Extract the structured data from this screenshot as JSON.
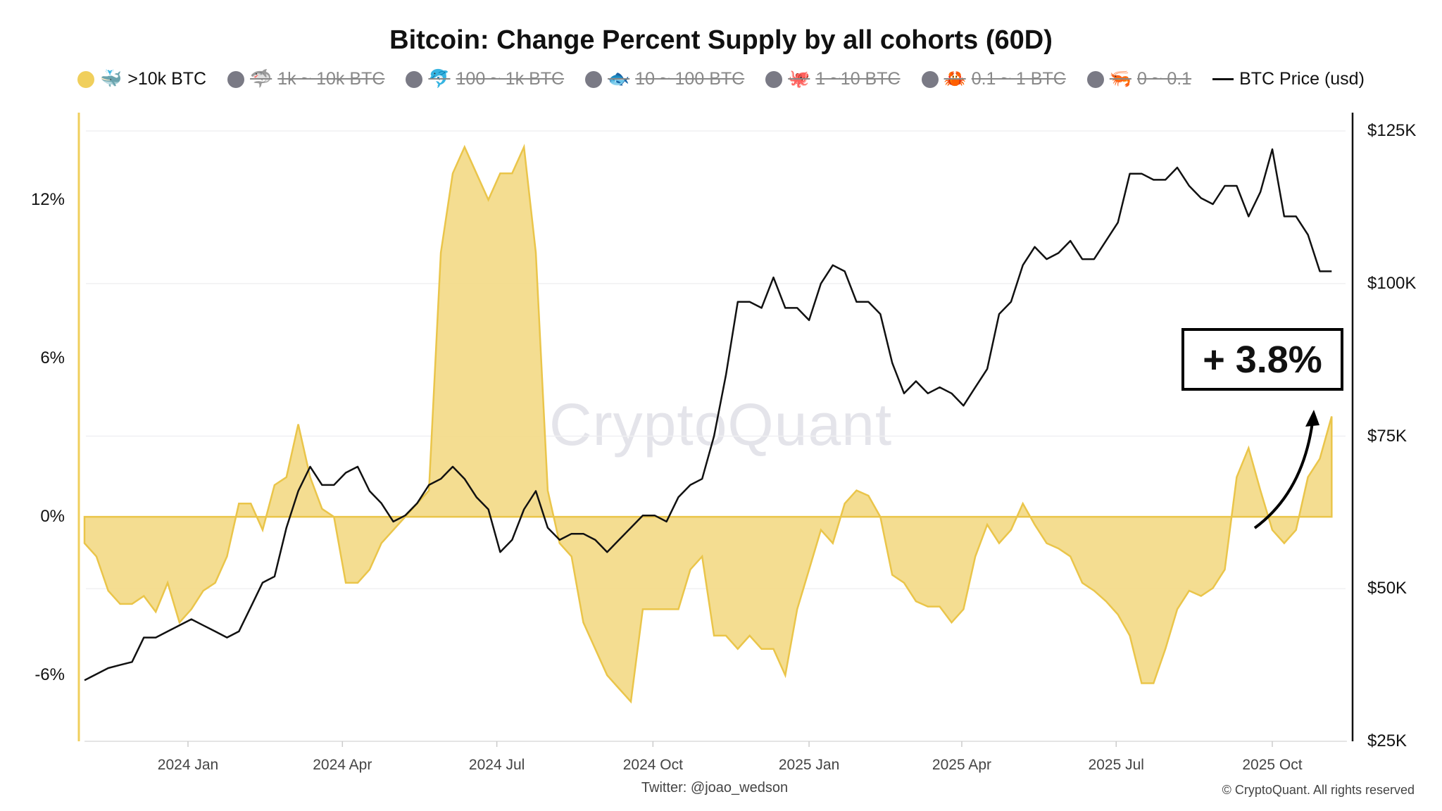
{
  "chart_data": {
    "type": "area",
    "title": "Bitcoin: Change Percent Supply by all cohorts (60D)",
    "legend": [
      {
        "icon": "🐳",
        "label": ">10k BTC",
        "color": "#f0cf5c",
        "active": true
      },
      {
        "icon": "🦈",
        "label": "1k ~ 10k BTC",
        "color": "#7a7a85",
        "active": false
      },
      {
        "icon": "🐬",
        "label": "100 ~ 1k BTC",
        "color": "#7a7a85",
        "active": false
      },
      {
        "icon": "🐟",
        "label": "10 ~ 100 BTC",
        "color": "#7a7a85",
        "active": false
      },
      {
        "icon": "🐙",
        "label": "1 ~10 BTC",
        "color": "#7a7a85",
        "active": false
      },
      {
        "icon": "🦀",
        "label": "0.1 ~ 1 BTC",
        "color": "#7a7a85",
        "active": false
      },
      {
        "icon": "🦐",
        "label": "0 ~ 0.1",
        "color": "#7a7a85",
        "active": false
      },
      {
        "icon": "line",
        "label": "BTC Price (usd)",
        "color": "#111111",
        "active": true
      }
    ],
    "legend_position": "top",
    "y_left": {
      "ticks": [
        "12%",
        "6%",
        "0%",
        "-6%"
      ],
      "tick_values": [
        12,
        6,
        0,
        -6
      ],
      "range": [
        -8.5,
        15.3
      ]
    },
    "y_right": {
      "ticks": [
        "$125K",
        "$100K",
        "$75K",
        "$50K",
        "$25K"
      ],
      "tick_values": [
        125,
        100,
        75,
        50,
        25
      ],
      "range": [
        25,
        128
      ]
    },
    "x_ticks": [
      {
        "label": "2024 Jan",
        "date": "2024-01-01"
      },
      {
        "label": "2024 Apr",
        "date": "2024-04-01"
      },
      {
        "label": "2024 Jul",
        "date": "2024-07-01"
      },
      {
        "label": "2024 Oct",
        "date": "2024-10-01"
      },
      {
        "label": "2025 Jan",
        "date": "2025-01-01"
      },
      {
        "label": "2025 Apr",
        "date": "2025-04-01"
      },
      {
        "label": "2025 Jul",
        "date": "2025-07-01"
      },
      {
        "label": "2025 Oct",
        "date": "2025-10-01"
      }
    ],
    "grid": true,
    "x": [
      "2023-11-01",
      "2023-11-08",
      "2023-11-15",
      "2023-11-22",
      "2023-11-29",
      "2023-12-06",
      "2023-12-13",
      "2023-12-20",
      "2023-12-27",
      "2024-01-03",
      "2024-01-10",
      "2024-01-17",
      "2024-01-24",
      "2024-01-31",
      "2024-02-07",
      "2024-02-14",
      "2024-02-21",
      "2024-02-28",
      "2024-03-06",
      "2024-03-13",
      "2024-03-20",
      "2024-03-27",
      "2024-04-03",
      "2024-04-10",
      "2024-04-17",
      "2024-04-24",
      "2024-05-01",
      "2024-05-08",
      "2024-05-15",
      "2024-05-22",
      "2024-05-29",
      "2024-06-05",
      "2024-06-12",
      "2024-06-19",
      "2024-06-26",
      "2024-07-03",
      "2024-07-10",
      "2024-07-17",
      "2024-07-24",
      "2024-07-31",
      "2024-08-07",
      "2024-08-14",
      "2024-08-21",
      "2024-08-28",
      "2024-09-04",
      "2024-09-11",
      "2024-09-18",
      "2024-09-25",
      "2024-10-02",
      "2024-10-09",
      "2024-10-16",
      "2024-10-23",
      "2024-10-30",
      "2024-11-06",
      "2024-11-13",
      "2024-11-20",
      "2024-11-27",
      "2024-12-04",
      "2024-12-11",
      "2024-12-18",
      "2024-12-25",
      "2025-01-01",
      "2025-01-08",
      "2025-01-15",
      "2025-01-22",
      "2025-01-29",
      "2025-02-05",
      "2025-02-12",
      "2025-02-19",
      "2025-02-26",
      "2025-03-05",
      "2025-03-12",
      "2025-03-19",
      "2025-03-26",
      "2025-04-02",
      "2025-04-09",
      "2025-04-16",
      "2025-04-23",
      "2025-04-30",
      "2025-05-07",
      "2025-05-14",
      "2025-05-21",
      "2025-05-28",
      "2025-06-04",
      "2025-06-11",
      "2025-06-18",
      "2025-06-25",
      "2025-07-02",
      "2025-07-09",
      "2025-07-16",
      "2025-07-23",
      "2025-07-30",
      "2025-08-06",
      "2025-08-13",
      "2025-08-20",
      "2025-08-27",
      "2025-09-03",
      "2025-09-10",
      "2025-09-17",
      "2025-09-24",
      "2025-10-01",
      "2025-10-08",
      "2025-10-15",
      "2025-10-22",
      "2025-10-29",
      "2025-11-05"
    ],
    "series": [
      {
        "name": ">10k BTC",
        "axis": "left",
        "unit": "%",
        "color": "#f0cf5c",
        "values": [
          -1,
          -1.5,
          -2.8,
          -3.3,
          -3.3,
          -3,
          -3.6,
          -2.5,
          -4,
          -3.5,
          -2.8,
          -2.5,
          -1.5,
          0.5,
          0.5,
          -0.5,
          1.2,
          1.5,
          3.5,
          1.5,
          0.3,
          0,
          -2.5,
          -2.5,
          -2,
          -1,
          -0.5,
          0,
          0.5,
          1,
          10,
          13,
          14,
          13,
          12,
          13,
          13,
          14,
          10,
          1,
          -1,
          -1.5,
          -4,
          -5,
          -6,
          -6.5,
          -7,
          -3.5,
          -3.5,
          -3.5,
          -3.5,
          -2,
          -1.5,
          -4.5,
          -4.5,
          -5,
          -4.5,
          -5,
          -5,
          -6,
          -3.5,
          -2,
          -0.5,
          -1,
          0.5,
          1,
          0.8,
          0,
          -2.2,
          -2.5,
          -3.2,
          -3.4,
          -3.4,
          -4,
          -3.5,
          -1.5,
          -0.3,
          -1,
          -0.5,
          0.5,
          -0.3,
          -1,
          -1.2,
          -1.5,
          -2.5,
          -2.8,
          -3.2,
          -3.7,
          -4.5,
          -6.3,
          -6.3,
          -5,
          -3.5,
          -2.8,
          -3,
          -2.7,
          -2,
          1.5,
          2.6,
          1,
          -0.5,
          -1,
          -0.5,
          1.5,
          2.2,
          3.8
        ]
      },
      {
        "name": "BTC Price (usd)",
        "axis": "right",
        "unit": "K USD",
        "color": "#111111",
        "values": [
          35,
          36,
          37,
          37.5,
          38,
          42,
          42,
          43,
          44,
          45,
          44,
          43,
          42,
          43,
          47,
          51,
          52,
          60,
          66,
          70,
          67,
          67,
          69,
          70,
          66,
          64,
          61,
          62,
          64,
          67,
          68,
          70,
          68,
          65,
          63,
          56,
          58,
          63,
          66,
          60,
          58,
          59,
          59,
          58,
          56,
          58,
          60,
          62,
          62,
          61,
          65,
          67,
          68,
          75,
          85,
          97,
          97,
          96,
          101,
          96,
          96,
          94,
          100,
          103,
          102,
          97,
          97,
          95,
          87,
          82,
          84,
          82,
          83,
          82,
          80,
          83,
          86,
          95,
          97,
          103,
          106,
          104,
          105,
          107,
          104,
          104,
          107,
          110,
          118,
          118,
          117,
          117,
          119,
          116,
          114,
          113,
          116,
          116,
          111,
          115,
          122,
          111,
          111,
          108,
          102,
          102
        ]
      }
    ],
    "annotation": "+ 3.8%",
    "watermark": "CryptoQuant",
    "source": "Twitter: @joao_wedson",
    "copyright": "© CryptoQuant. All rights reserved"
  }
}
